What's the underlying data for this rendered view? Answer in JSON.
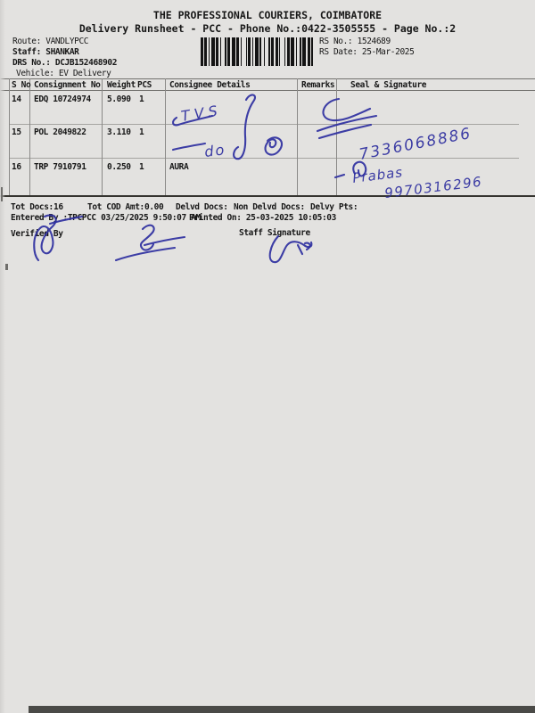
{
  "header": {
    "title": "THE PROFESSIONAL COURIERS, COIMBATORE",
    "subtitle": "Delivery Runsheet - PCC - Phone No.:0422-3505555 - Page No.:2",
    "route_label": "Route:",
    "route_value": "VANDLYPCC",
    "staff_label": "Staff:",
    "staff_value": "SHANKAR",
    "drs_label": "DRS No.:",
    "drs_value": "DCJB152468902",
    "vehicle_label": "Vehicle:",
    "vehicle_value": "EV Delivery",
    "rs_no_label": "RS No.:",
    "rs_no_value": "1524689",
    "rs_date_label": "RS Date:",
    "rs_date_value": "25-Mar-2025"
  },
  "table": {
    "columns": [
      "S No",
      "Consignment No",
      "Weight",
      "PCS",
      "Consignee Details",
      "Remarks",
      "Seal & Signature"
    ],
    "rows": [
      {
        "sno": "14",
        "consignment": "EDQ 10724974",
        "weight": "5.090",
        "pcs": "1",
        "consignee": "",
        "remarks": ""
      },
      {
        "sno": "15",
        "consignment": "POL 2049822",
        "weight": "3.110",
        "pcs": "1",
        "consignee": "",
        "remarks": ""
      },
      {
        "sno": "16",
        "consignment": "TRP 7910791",
        "weight": "0.250",
        "pcs": "1",
        "consignee": "AURA",
        "remarks": ""
      }
    ]
  },
  "ink": {
    "consignee_note_1": "TVS",
    "consignee_note_2": "do",
    "seal_phone_1": "7336068886",
    "seal_name": "Prabas",
    "seal_phone_2": "9970316296"
  },
  "footer": {
    "totals": [
      {
        "label": "Tot Docs:",
        "value": "16"
      },
      {
        "label": "Tot COD Amt:",
        "value": "0.00"
      },
      {
        "label": "Delvd Docs:",
        "value": ""
      },
      {
        "label": "Non Delvd Docs:",
        "value": ""
      },
      {
        "label": "Delvy Pts:",
        "value": ""
      }
    ],
    "entered_by": "Entered By :TPCPCC 03/25/2025 9:50:07 AM",
    "printed_on": "Printed On: 25-03-2025 10:05:03",
    "verified_by_label": "Verified By",
    "staff_signature_label": "Staff Signature"
  }
}
